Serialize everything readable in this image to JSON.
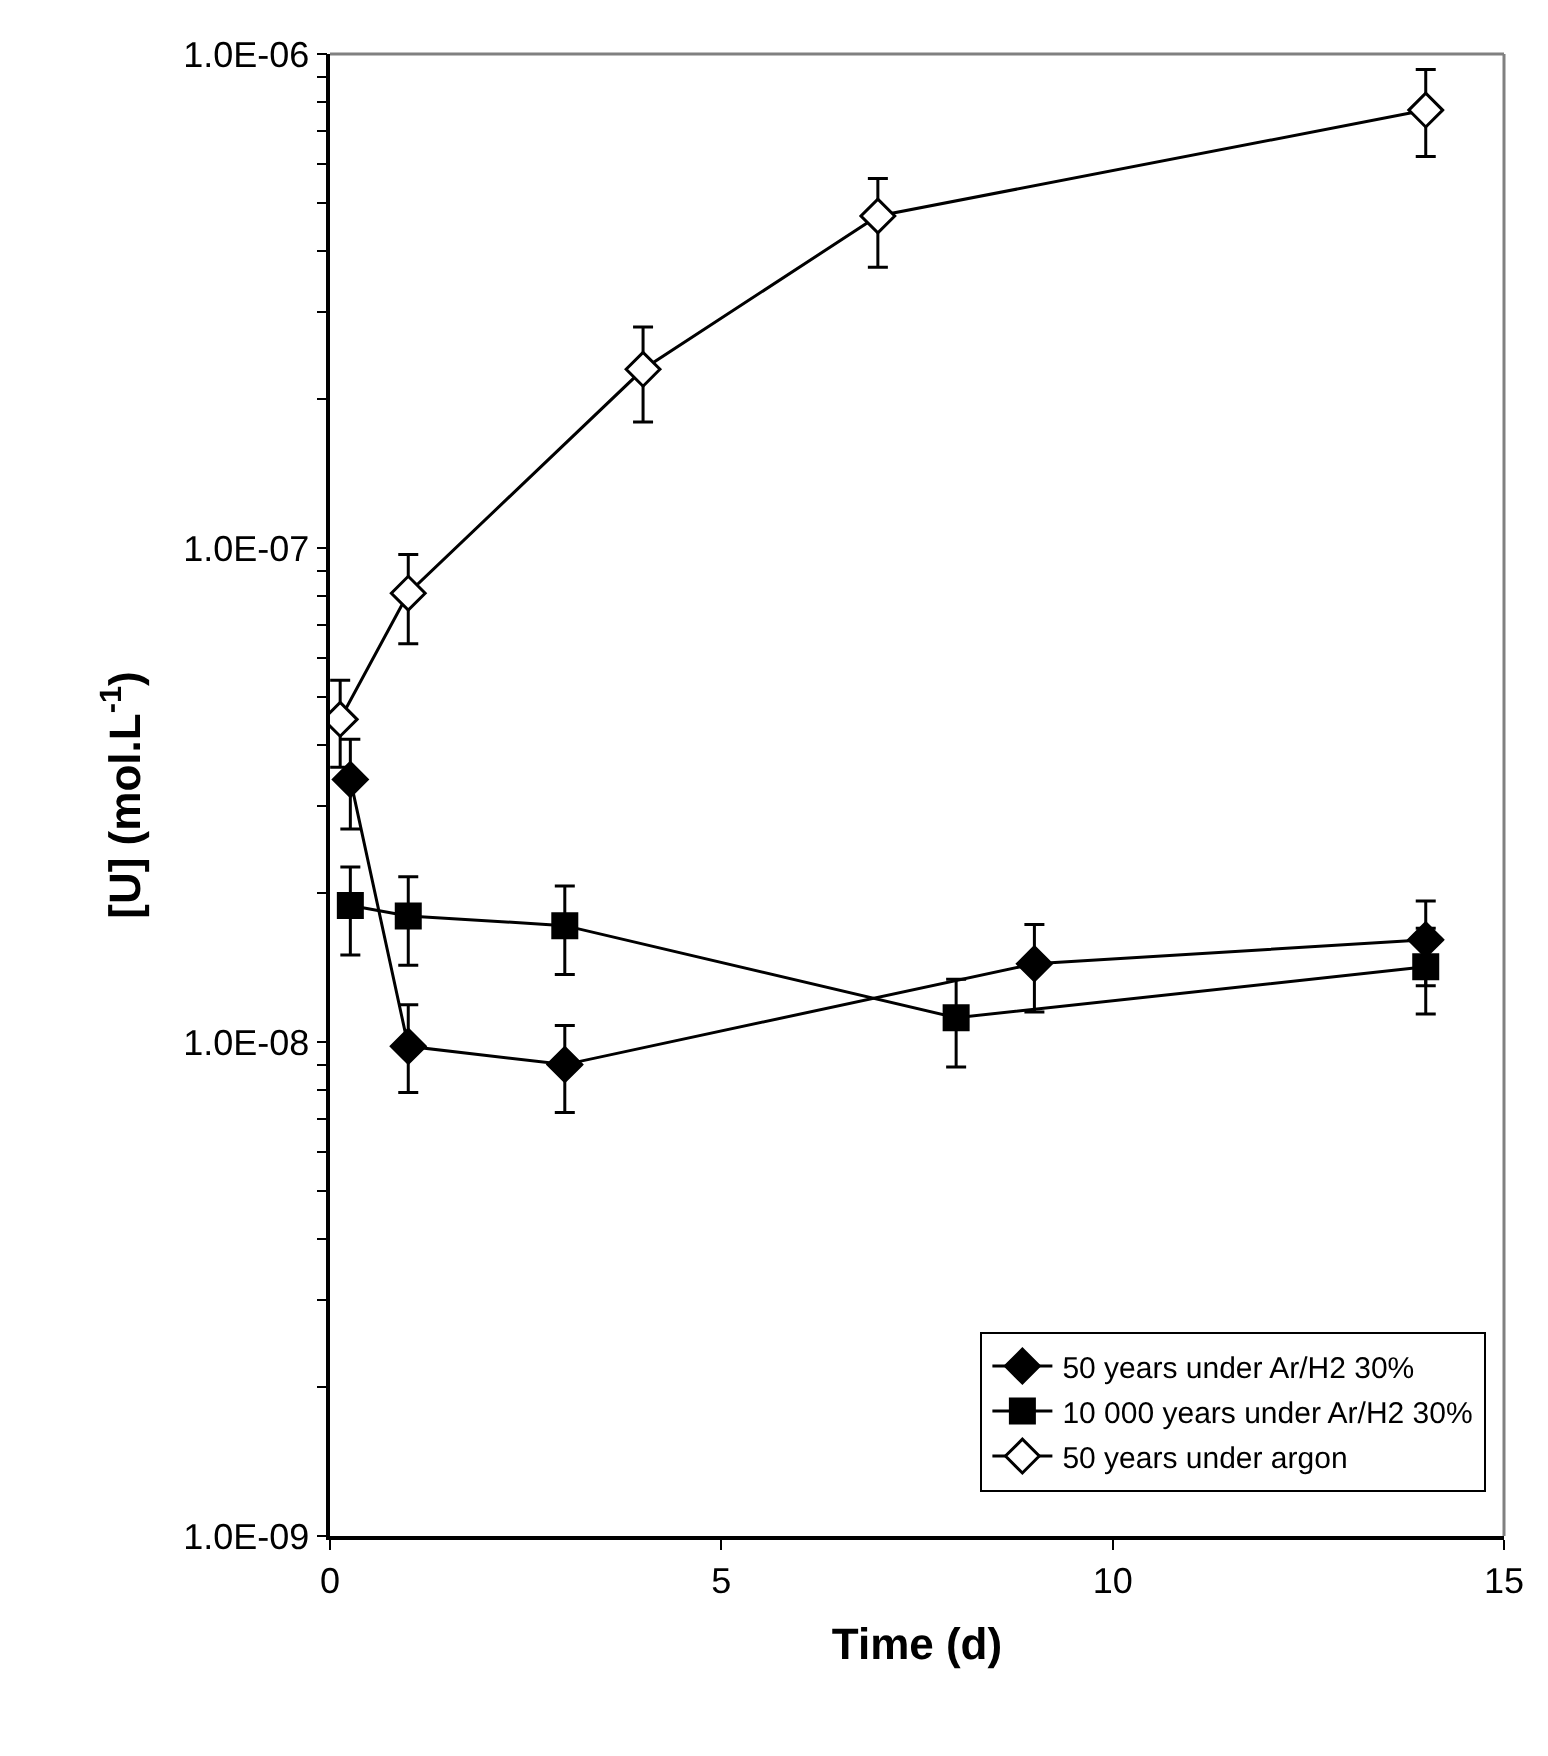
{
  "chart_data": {
    "type": "line",
    "xlabel": "Time (d)",
    "ylabel": "[U] (mol.L$^{-1}$)",
    "log": "y",
    "xlim": [
      0,
      15
    ],
    "xticks": [
      0,
      5,
      10,
      15
    ],
    "ylim": [
      1e-09,
      1e-06
    ],
    "yticks": [
      {
        "value": 1e-09,
        "label": "1.0E-09"
      },
      {
        "value": 2e-09,
        "label": null
      },
      {
        "value": 3e-09,
        "label": null
      },
      {
        "value": 4e-09,
        "label": null
      },
      {
        "value": 5e-09,
        "label": null
      },
      {
        "value": 6e-09,
        "label": null
      },
      {
        "value": 7e-09,
        "label": null
      },
      {
        "value": 8e-09,
        "label": null
      },
      {
        "value": 9e-09,
        "label": null
      },
      {
        "value": 1e-08,
        "label": "1.0E-08"
      },
      {
        "value": 2e-08,
        "label": null
      },
      {
        "value": 3e-08,
        "label": null
      },
      {
        "value": 4e-08,
        "label": null
      },
      {
        "value": 5e-08,
        "label": null
      },
      {
        "value": 6e-08,
        "label": null
      },
      {
        "value": 7e-08,
        "label": null
      },
      {
        "value": 8e-08,
        "label": null
      },
      {
        "value": 9e-08,
        "label": null
      },
      {
        "value": 1e-07,
        "label": "1.0E-07"
      },
      {
        "value": 2e-07,
        "label": null
      },
      {
        "value": 3e-07,
        "label": null
      },
      {
        "value": 4e-07,
        "label": null
      },
      {
        "value": 5e-07,
        "label": null
      },
      {
        "value": 6e-07,
        "label": null
      },
      {
        "value": 7e-07,
        "label": null
      },
      {
        "value": 8e-07,
        "label": null
      },
      {
        "value": 9e-07,
        "label": null
      },
      {
        "value": 1e-06,
        "label": "1.0E-06"
      }
    ],
    "legend": "bottom right",
    "line_style": "solid",
    "series": [
      {
        "name": "50 years under Ar/H2 30%",
        "color": "#000000",
        "marker": "diamond",
        "x": [
          0.26,
          1,
          3,
          9,
          14
        ],
        "values": [
          3.4e-08,
          9.8e-09,
          9e-09,
          1.44e-08,
          1.61e-08
        ],
        "errors": [
          [
            2.7e-08,
            4.1e-08
          ],
          [
            7.9e-09,
            1.19e-08
          ],
          [
            7.2e-09,
            1.08e-08
          ],
          [
            1.15e-08,
            1.73e-08
          ],
          [
            1.3e-08,
            1.93e-08
          ]
        ]
      },
      {
        "name": "10 000 years under Ar/H2 30%",
        "color": "#000000",
        "marker": "square",
        "x": [
          0.26,
          1,
          3,
          8,
          14
        ],
        "values": [
          1.89e-08,
          1.8e-08,
          1.72e-08,
          1.12e-08,
          1.42e-08
        ],
        "errors": [
          [
            1.5e-08,
            2.26e-08
          ],
          [
            1.43e-08,
            2.16e-08
          ],
          [
            1.37e-08,
            2.07e-08
          ],
          [
            8.9e-09,
            1.34e-08
          ],
          [
            1.14e-08,
            1.7e-08
          ]
        ]
      },
      {
        "name": "50 years under argon",
        "color": "#000000",
        "marker": "diamond-open",
        "x": [
          0.13,
          1,
          4,
          7,
          14
        ],
        "values": [
          4.5e-08,
          8.1e-08,
          2.3e-07,
          4.7e-07,
          7.7e-07
        ],
        "errors": [
          [
            3.6e-08,
            5.4e-08
          ],
          [
            6.4e-08,
            9.7e-08
          ],
          [
            1.8e-07,
            2.8e-07
          ],
          [
            3.7e-07,
            5.6e-07
          ],
          [
            6.2e-07,
            9.3e-07
          ]
        ]
      }
    ]
  }
}
